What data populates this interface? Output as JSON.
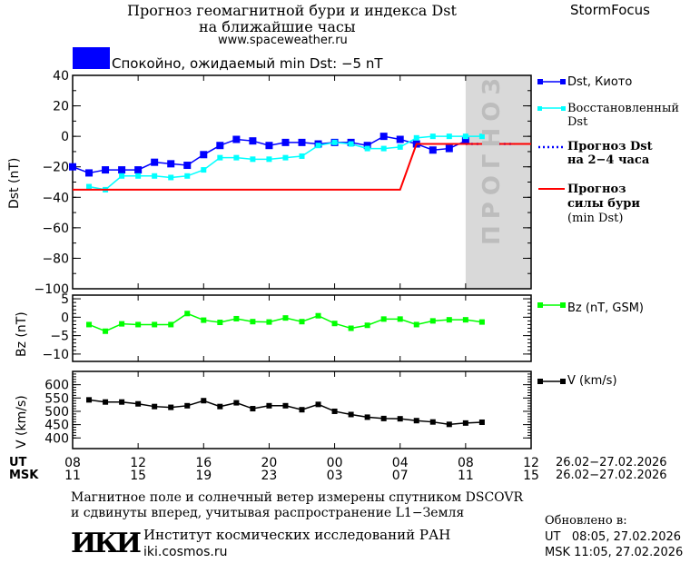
{
  "header": {
    "title_line1": "Прогноз геомагнитной бури и индекса Dst",
    "title_line2": "на ближайшие часы",
    "website": "www.spaceweather.ru",
    "brand": "StormFocus",
    "status_text": "Спокойно, ожидаемый min Dst: −5 nT",
    "status_color": "#0000ff"
  },
  "forecast_zone_label": "ПРОГНОЗ",
  "time_axis": {
    "ut_label": "UT",
    "msk_label": "MSK",
    "ut_ticks": [
      "08",
      "12",
      "16",
      "20",
      "00",
      "04",
      "08",
      "12"
    ],
    "msk_ticks": [
      "11",
      "15",
      "19",
      "23",
      "03",
      "07",
      "11",
      "15"
    ],
    "date_range_ut": "26.02−27.02.2026",
    "date_range_msk": "26.02−27.02.2026"
  },
  "legend": {
    "dst_kyoto": "Dst, Киото",
    "dst_restored_1": "Восстановленный",
    "dst_restored_2": "Dst",
    "dst_forecast_1": "Прогноз Dst",
    "dst_forecast_2": "на 2−4 часа",
    "storm_forecast_1": "Прогноз",
    "storm_forecast_2": "силы бури",
    "storm_forecast_3": "(min Dst)",
    "bz": "Bz (nT, GSM)",
    "v": "V (km/s)"
  },
  "footer": {
    "note_line1": "Магнитное поле и солнечный ветер измерены спутником DSCOVR",
    "note_line2": "и сдвинуты вперед, учитывая распространение L1−Земля",
    "institute": "Институт космических исследований РАН",
    "institute_url": "iki.cosmos.ru",
    "logo_text": "ИКИ",
    "updated_label": "Обновлено в:",
    "updated_ut": "UT   08:05, 27.02.2026",
    "updated_msk": "MSK 11:05, 27.02.2026"
  },
  "chart_data": {
    "type": "line",
    "x": [
      "26.02 08:00",
      "26.02 09:00",
      "26.02 10:00",
      "26.02 11:00",
      "26.02 12:00",
      "26.02 13:00",
      "26.02 14:00",
      "26.02 15:00",
      "26.02 16:00",
      "26.02 17:00",
      "26.02 18:00",
      "26.02 19:00",
      "26.02 20:00",
      "26.02 21:00",
      "26.02 22:00",
      "26.02 23:00",
      "27.02 00:00",
      "27.02 01:00",
      "27.02 02:00",
      "27.02 03:00",
      "27.02 04:00",
      "27.02 05:00",
      "27.02 06:00",
      "27.02 07:00",
      "27.02 08:00",
      "27.02 09:00"
    ],
    "xlim": [
      "26.02 08:00",
      "27.02 12:00"
    ],
    "forecast_zone": [
      "27.02 08:00",
      "27.02 12:00"
    ],
    "panels": [
      {
        "ylabel": "Dst (nT)",
        "ylim": [
          -100,
          40
        ],
        "yticks": [
          40,
          20,
          0,
          -20,
          -40,
          -60,
          -80,
          -100
        ],
        "series": [
          {
            "name": "Dst, Киото",
            "color": "#0000ff",
            "values": [
              -20,
              -24,
              -22,
              -22,
              -22,
              -17,
              -18,
              -19,
              -12,
              -6,
              -2,
              -3,
              -6,
              -4,
              -4,
              -5,
              -4,
              -4,
              -6,
              0,
              -2,
              -5,
              -9,
              -8,
              -3,
              null
            ]
          },
          {
            "name": "Восстановленный Dst",
            "color": "#00ffff",
            "values": [
              null,
              -33,
              -35,
              -26,
              -26,
              -26,
              -27,
              -26,
              -22,
              -14,
              -14,
              -15,
              -15,
              -14,
              -13,
              -6,
              -4,
              -5,
              -8,
              -8,
              -7,
              -1,
              0,
              0,
              0,
              0
            ]
          },
          {
            "name": "Прогноз Dst на 2−4 часа",
            "color": "#0000ff",
            "style": "dotted",
            "x": [
              "27.02 08:00",
              "27.02 11:00"
            ],
            "values": [
              -5,
              -5
            ]
          },
          {
            "name": "Прогноз силы бури (min Dst)",
            "color": "#ff0000",
            "x": [
              "26.02 08:00",
              "27.02 04:00",
              "27.02 05:00",
              "27.02 12:00"
            ],
            "values": [
              -35,
              -35,
              -5,
              -5
            ]
          }
        ]
      },
      {
        "ylabel": "Bz (nT)",
        "ylim": [
          -12,
          6
        ],
        "yticks": [
          5,
          0,
          -5,
          -10
        ],
        "series": [
          {
            "name": "Bz (nT, GSM)",
            "color": "#00ff00",
            "values": [
              null,
              -2,
              -3.8,
              -1.8,
              -2,
              -2,
              -2,
              1,
              -0.8,
              -1.4,
              -0.4,
              -1.2,
              -1.3,
              -0.2,
              -1.2,
              0.4,
              -1.7,
              -3,
              -2.2,
              -0.5,
              -0.5,
              -2,
              -1,
              -0.7,
              -0.7,
              -1.3
            ]
          }
        ]
      },
      {
        "ylabel": "V (km/s)",
        "ylim": [
          360,
          650
        ],
        "yticks": [
          600,
          550,
          500,
          450,
          400
        ],
        "series": [
          {
            "name": "V (km/s)",
            "color": "#000000",
            "values": [
              null,
              543,
              535,
              535,
              528,
              518,
              515,
              521,
              540,
              518,
              532,
              510,
              521,
              521,
              506,
              526,
              500,
              488,
              478,
              473,
              472,
              465,
              460,
              451,
              456,
              459
            ]
          }
        ]
      }
    ]
  }
}
